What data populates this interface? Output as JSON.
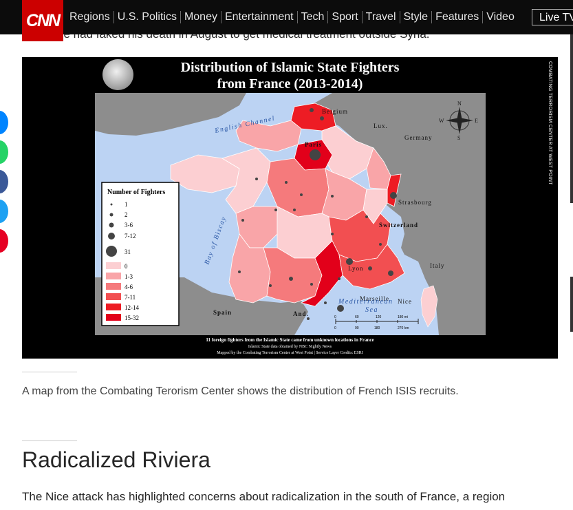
{
  "header": {
    "logo_text": "CNN",
    "nav": [
      "Regions",
      "U.S. Politics",
      "Money",
      "Entertainment",
      "Tech",
      "Sport",
      "Travel",
      "Style",
      "Features",
      "Video"
    ],
    "live_tv": "Live TV"
  },
  "article": {
    "previous_line": "st that he had faked his death in August to get medical treatment outside Syria.",
    "caption": "A map from the Combating Terorism Center shows the distribution of French ISIS recruits.",
    "section_title": "Radicalized Riviera",
    "body_line": "The Nice attack has highlighted concerns about radicalization in the south of France, a region"
  },
  "share_colors": [
    "#0084ff",
    "#25d366",
    "#3b5998",
    "#1da1f2",
    "#e60023"
  ],
  "figure": {
    "title_line1": "Distribution of Islamic State Fighters",
    "title_line2": "from France (2013-2014)",
    "side_credit": "COMBATING TERRORISM CENTER AT WEST POINT",
    "legend_title": "Number of Fighters",
    "legend_sizes": [
      "1",
      "2",
      "3-6",
      "7-12",
      "31"
    ],
    "legend_ranges": [
      "0",
      "1-3",
      "4-6",
      "7-11",
      "12-14",
      "15-32"
    ],
    "legend_colors": [
      "#fccfd2",
      "#f9a5a8",
      "#f57a7c",
      "#f24f51",
      "#ed1c24",
      "#e2001a"
    ],
    "places": {
      "belgium": "Belgium",
      "lux": "Lux.",
      "germany": "Germany",
      "paris": "Paris",
      "strasbourg": "Strasbourg",
      "switzerland": "Switzerland",
      "lyon": "Lyon",
      "italy": "Italy",
      "marseille": "Marseille",
      "nice": "Nice",
      "spain": "Spain",
      "andorra": "And."
    },
    "waters": {
      "english_channel": "English Channel",
      "bay_of_biscay": "Bay of Biscay",
      "mediterranean": "Mediterranean",
      "sea": "Sea"
    },
    "compass": [
      "N",
      "E",
      "S",
      "W"
    ],
    "scale_top": [
      "0",
      "60",
      "120",
      "180 mi"
    ],
    "scale_bottom": [
      "0",
      "90",
      "180",
      "270 km"
    ],
    "footnote_main": "11 foreign fighters from the Islamic State came from unknown locations in France",
    "footnote_1": "Islamic State data obtained by NBC Nightly News",
    "footnote_2": "Mapped by the Combating Terrorism Center at West Point | Service Layer Credits: ESRI"
  }
}
